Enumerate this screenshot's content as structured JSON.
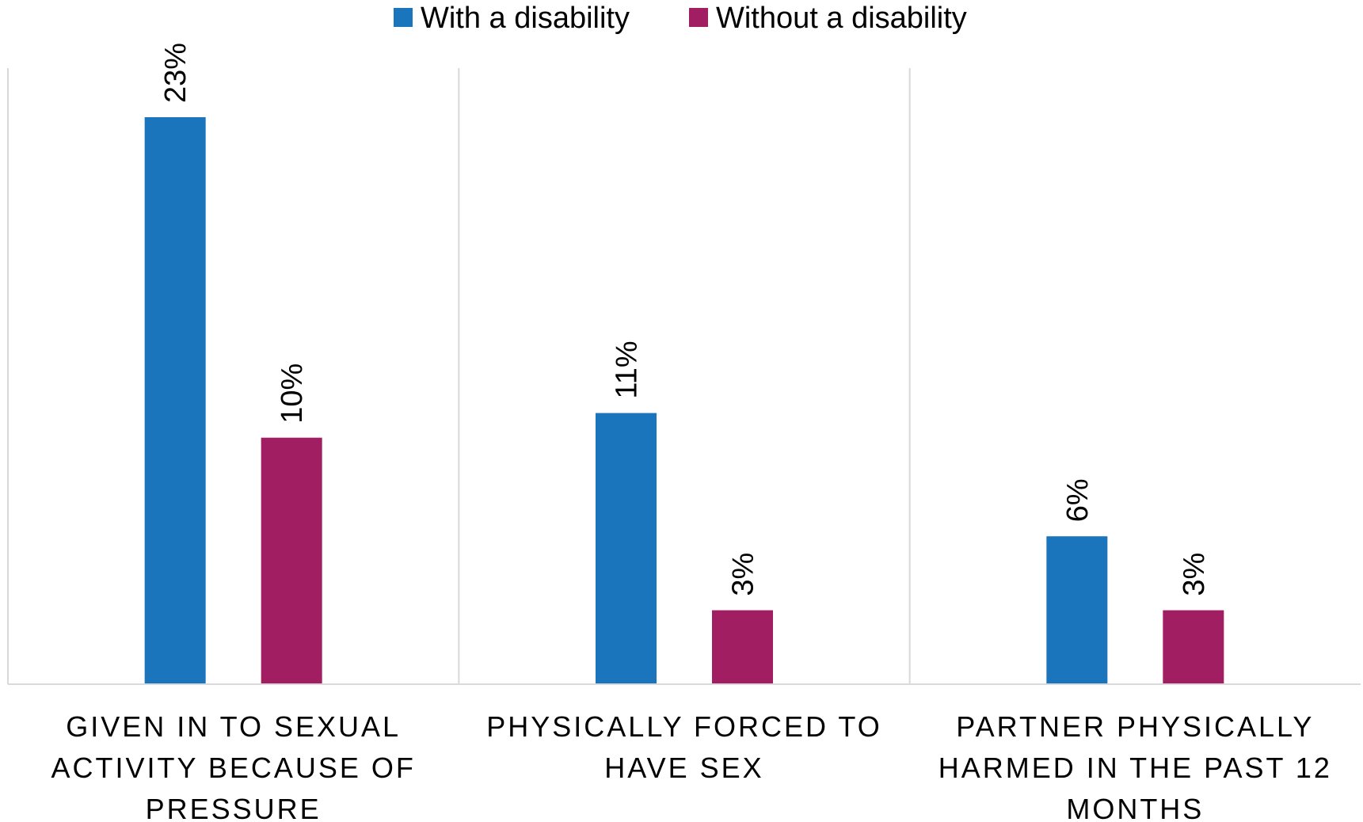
{
  "chart_data": {
    "type": "bar",
    "title": "",
    "xlabel": "",
    "ylabel": "",
    "ylim": [
      0,
      25
    ],
    "grid": false,
    "legend_position": "top",
    "categories": [
      [
        "GIVEN IN TO SEXUAL",
        "ACTIVITY BECAUSE OF",
        "PRESSURE"
      ],
      [
        "PHYSICALLY FORCED TO",
        "HAVE SEX"
      ],
      [
        "PARTNER PHYSICALLY",
        "HARMED IN THE PAST 12",
        "MONTHS"
      ]
    ],
    "series": [
      {
        "name": "With a disability",
        "color": "#1b75bc",
        "values": [
          23,
          11,
          6
        ],
        "labels": [
          "23%",
          "11%",
          "6%"
        ]
      },
      {
        "name": "Without a disability",
        "color": "#a21e62",
        "values": [
          10,
          3,
          3
        ],
        "labels": [
          "10%",
          "3%",
          "3%"
        ]
      }
    ]
  }
}
